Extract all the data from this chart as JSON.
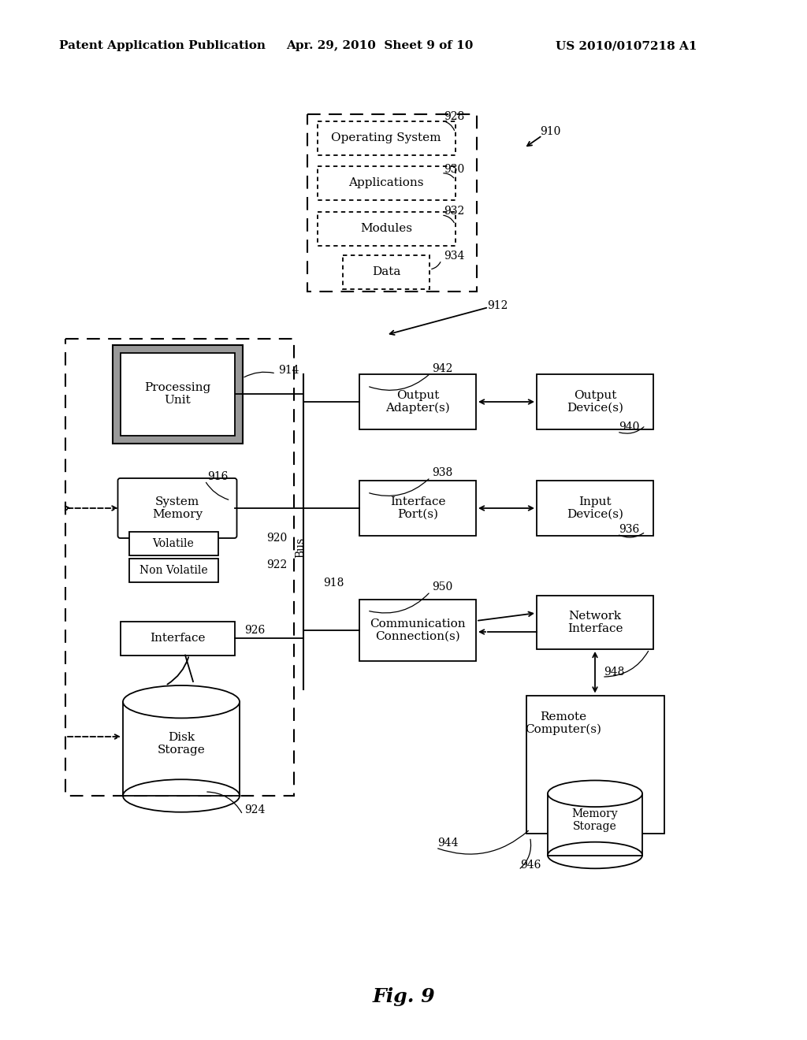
{
  "bg_color": "#ffffff",
  "header_left": "Patent Application Publication",
  "header_mid": "Apr. 29, 2010  Sheet 9 of 10",
  "header_right": "US 2010/0107218 A1",
  "fig_label": "Fig. 9"
}
